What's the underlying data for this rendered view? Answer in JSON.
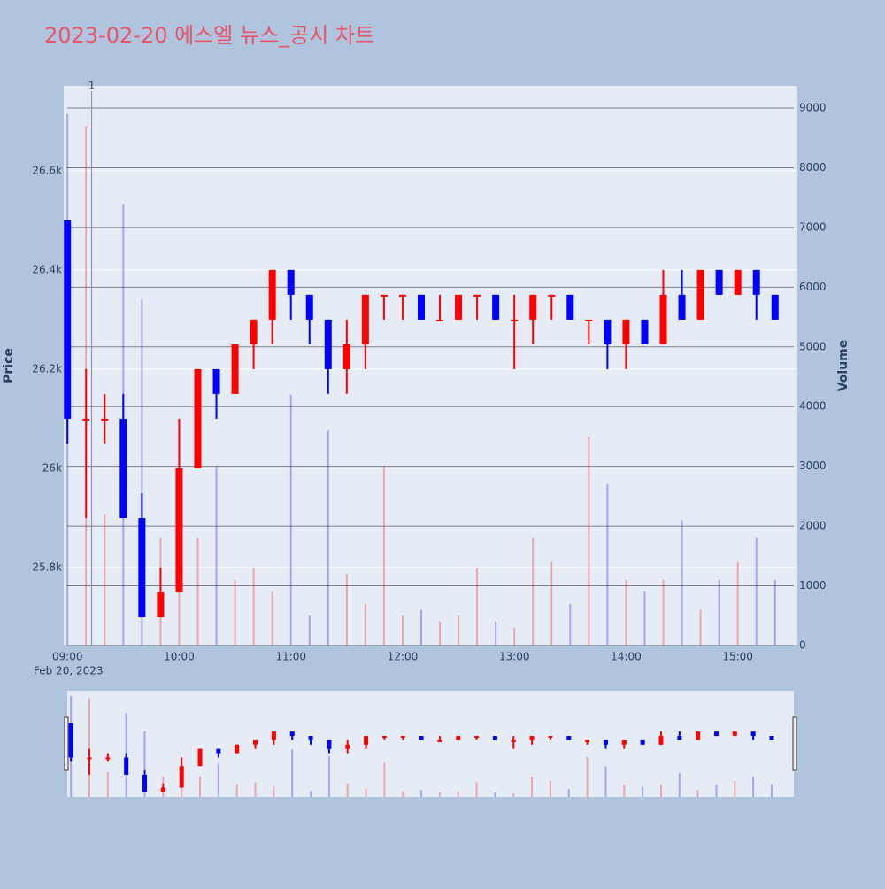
{
  "chart_data": {
    "type": "candlestick",
    "title": "2023-02-20 에스엘 뉴스_공시 차트",
    "y_label": "Price",
    "y2_label": "Volume",
    "date_label": "Feb 20, 2023",
    "up_color": "#ff0000",
    "down_color": "#0000ff",
    "x": [
      "09:00",
      "09:10",
      "09:20",
      "09:30",
      "09:40",
      "09:50",
      "10:00",
      "10:10",
      "10:20",
      "10:30",
      "10:40",
      "10:50",
      "11:00",
      "11:10",
      "11:20",
      "11:30",
      "11:40",
      "11:50",
      "12:00",
      "12:10",
      "12:20",
      "12:30",
      "12:40",
      "12:50",
      "13:00",
      "13:10",
      "13:20",
      "13:30",
      "13:40",
      "13:50",
      "14:00",
      "14:10",
      "14:20",
      "14:30",
      "14:40",
      "14:50",
      "15:00",
      "15:10",
      "15:20"
    ],
    "open": [
      26500,
      26100,
      26100,
      26100,
      25900,
      25700,
      25750,
      26000,
      26200,
      26150,
      26250,
      26300,
      26400,
      26350,
      26300,
      26200,
      26250,
      26350,
      26350,
      26350,
      26300,
      26300,
      26350,
      26350,
      26300,
      26300,
      26350,
      26350,
      26300,
      26300,
      26250,
      26300,
      26250,
      26350,
      26300,
      26400,
      26350,
      26400,
      26350
    ],
    "high": [
      26500,
      26200,
      26150,
      26150,
      25950,
      25800,
      26100,
      26200,
      26200,
      26250,
      26300,
      26400,
      26400,
      26350,
      26300,
      26300,
      26350,
      26350,
      26350,
      26350,
      26350,
      26350,
      26350,
      26350,
      26350,
      26350,
      26350,
      26350,
      26300,
      26300,
      26300,
      26300,
      26400,
      26400,
      26400,
      26400,
      26400,
      26400,
      26350
    ],
    "low": [
      26050,
      25900,
      26050,
      25900,
      25700,
      25700,
      25750,
      26000,
      26100,
      26150,
      26200,
      26250,
      26300,
      26250,
      26150,
      26150,
      26200,
      26300,
      26300,
      26300,
      26300,
      26300,
      26300,
      26300,
      26200,
      26250,
      26300,
      26300,
      26250,
      26200,
      26200,
      26250,
      26250,
      26300,
      26300,
      26350,
      26350,
      26300,
      26300
    ],
    "close": [
      26100,
      26100,
      26100,
      25900,
      25700,
      25750,
      26000,
      26200,
      26150,
      26250,
      26300,
      26400,
      26350,
      26300,
      26200,
      26250,
      26350,
      26350,
      26350,
      26300,
      26300,
      26350,
      26350,
      26300,
      26300,
      26350,
      26350,
      26300,
      26300,
      26250,
      26300,
      26250,
      26350,
      26300,
      26400,
      26350,
      26400,
      26350,
      26300
    ],
    "volume": [
      8900,
      8700,
      2200,
      7400,
      5800,
      1800,
      1500,
      1800,
      3000,
      1100,
      1300,
      900,
      4200,
      500,
      3600,
      1200,
      700,
      3000,
      500,
      600,
      400,
      500,
      1300,
      400,
      300,
      1800,
      1400,
      700,
      3500,
      2700,
      1100,
      900,
      1100,
      2100,
      600,
      1100,
      1400,
      1800,
      1100
    ],
    "xlim": [
      "08:58",
      "15:32"
    ],
    "xticks": [
      "09:00",
      "10:00",
      "11:00",
      "12:00",
      "13:00",
      "14:00",
      "15:00"
    ],
    "ylim": [
      25643,
      26771
    ],
    "yticks": [
      {
        "value": 25800,
        "label": "25.8k"
      },
      {
        "value": 26000,
        "label": "26k"
      },
      {
        "value": 26200,
        "label": "26.2k"
      },
      {
        "value": 26400,
        "label": "26.4k"
      },
      {
        "value": 26600,
        "label": "26.6k"
      }
    ],
    "y2lim": [
      0,
      9371
    ],
    "y2ticks": [
      0,
      1000,
      2000,
      3000,
      4000,
      5000,
      6000,
      7000,
      8000,
      9000
    ],
    "annotations": [
      {
        "x": "09:13",
        "text": "1"
      }
    ],
    "grid": true
  }
}
